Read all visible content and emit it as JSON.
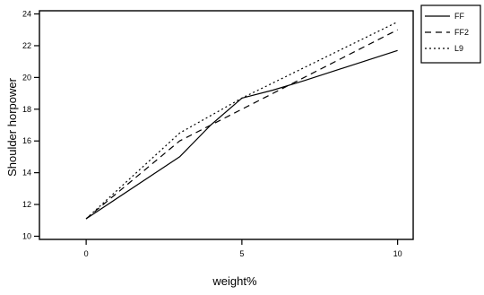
{
  "chart_data": {
    "type": "line",
    "xlabel": "weight%",
    "ylabel": "Shoulder horpower",
    "xlim": [
      -1.5,
      10.5
    ],
    "ylim": [
      9.8,
      24.2
    ],
    "x_ticks": [
      0,
      5,
      10
    ],
    "y_ticks": [
      10,
      12,
      14,
      16,
      18,
      20,
      22,
      24
    ],
    "grid": false,
    "legend_position": "outside-top-right",
    "series": [
      {
        "name": "FF",
        "style": "solid",
        "x": [
          0,
          3,
          4,
          5,
          6,
          7,
          10
        ],
        "y": [
          11.1,
          15.0,
          17.0,
          18.7,
          19.2,
          19.8,
          21.7
        ]
      },
      {
        "name": "FF2",
        "style": "dashed",
        "x": [
          0,
          3,
          5,
          10
        ],
        "y": [
          11.1,
          16.0,
          18.0,
          23.0
        ]
      },
      {
        "name": "L9",
        "style": "dotted",
        "x": [
          0,
          3,
          5,
          10
        ],
        "y": [
          11.1,
          16.5,
          18.7,
          23.5
        ]
      }
    ]
  }
}
